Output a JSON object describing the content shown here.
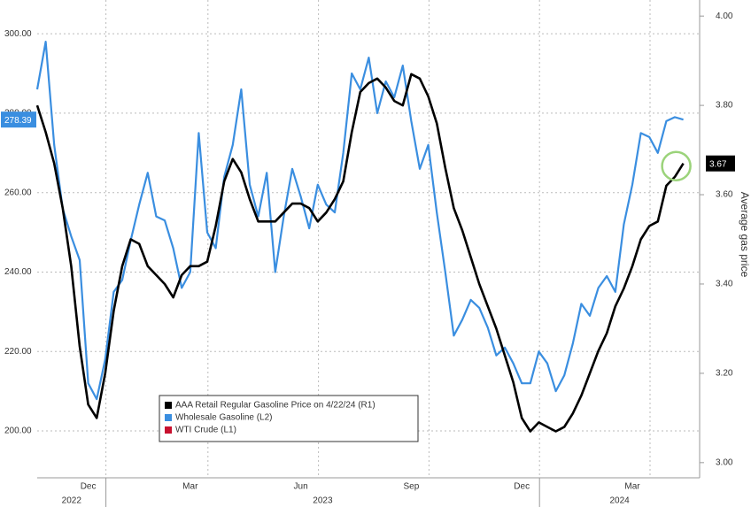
{
  "chart_data": {
    "type": "line",
    "y2_axis_label": "Average gas price",
    "categories": [
      null,
      null,
      null,
      null,
      null,
      null,
      "Dec",
      null,
      null,
      null,
      null,
      null,
      null,
      null,
      null,
      null,
      null,
      null,
      "Mar",
      null,
      null,
      null,
      null,
      null,
      null,
      null,
      null,
      null,
      null,
      null,
      null,
      "Jun",
      null,
      null,
      null,
      null,
      null,
      null,
      null,
      null,
      null,
      null,
      null,
      null,
      "Sep",
      null,
      null,
      null,
      null,
      null,
      null,
      null,
      null,
      null,
      null,
      null,
      null,
      "Dec",
      null,
      null,
      null,
      null,
      null,
      null,
      null,
      null,
      null,
      null,
      null,
      null,
      "Mar",
      null,
      null,
      null,
      null,
      null,
      null
    ],
    "year_labels": [
      "2022",
      "2023",
      "2024"
    ],
    "series": [
      {
        "name": "AAA Retail Regular Gasoline Price on 4/22/24 (R1)",
        "color": "#000000",
        "axis": "y2",
        "values": [
          3.8,
          3.74,
          3.67,
          3.57,
          3.44,
          3.26,
          3.13,
          3.1,
          3.2,
          3.34,
          3.44,
          3.5,
          3.49,
          3.44,
          3.42,
          3.4,
          3.37,
          3.42,
          3.44,
          3.44,
          3.45,
          3.53,
          3.63,
          3.68,
          3.65,
          3.59,
          3.54,
          3.54,
          3.54,
          3.56,
          3.58,
          3.58,
          3.57,
          3.54,
          3.56,
          3.59,
          3.63,
          3.74,
          3.83,
          3.85,
          3.86,
          3.84,
          3.81,
          3.8,
          3.87,
          3.86,
          3.82,
          3.76,
          3.66,
          3.57,
          3.52,
          3.46,
          3.4,
          3.35,
          3.3,
          3.24,
          3.18,
          3.1,
          3.07,
          3.09,
          3.08,
          3.07,
          3.08,
          3.11,
          3.15,
          3.2,
          3.25,
          3.29,
          3.35,
          3.39,
          3.44,
          3.5,
          3.53,
          3.54,
          3.62,
          3.64,
          3.67
        ]
      },
      {
        "name": "Wholesale Gasoline (L2)",
        "color": "#3a8ee0",
        "values": [
          286,
          298,
          272,
          256,
          249,
          243,
          212,
          208,
          218,
          235,
          238,
          248,
          257,
          265,
          254,
          253,
          246,
          236,
          240,
          275,
          250,
          246,
          264,
          272,
          286,
          262,
          254,
          265,
          240,
          254,
          266,
          259,
          251,
          262,
          257,
          255,
          270,
          290,
          286,
          294,
          280,
          288,
          284,
          292,
          278,
          266,
          272,
          255,
          240,
          224,
          228,
          233,
          231,
          226,
          219,
          221,
          217,
          212,
          212,
          220,
          217,
          210,
          214,
          222,
          232,
          229,
          236,
          239,
          235,
          252,
          262,
          275,
          274,
          270,
          278,
          279,
          278.39
        ]
      },
      {
        "name": "WTI Crude (L1)",
        "color": "#c8102e",
        "values": [
          null,
          null,
          null,
          null,
          null,
          null,
          null,
          null,
          null,
          null,
          null,
          null,
          null,
          null,
          null,
          null,
          null,
          null,
          null,
          null,
          null,
          null,
          null,
          null,
          null,
          null,
          null,
          null,
          null,
          null,
          null,
          null,
          null,
          null,
          null,
          null,
          null,
          null,
          null,
          null,
          null,
          null,
          null,
          null,
          null,
          null,
          null,
          null,
          null,
          null,
          null,
          null,
          null,
          null,
          null,
          null,
          null,
          null,
          null,
          null,
          null,
          null,
          null,
          null,
          null,
          null,
          null,
          null,
          null,
          null,
          null,
          null,
          null,
          null,
          null,
          null,
          null
        ]
      }
    ],
    "ylim": [
      188.2,
      308.5
    ],
    "yticks": [
      {
        "value": 200,
        "label": "200.00"
      },
      {
        "value": 220,
        "label": "220.00"
      },
      {
        "value": 240,
        "label": "240.00"
      },
      {
        "value": 260,
        "label": "260.00"
      },
      {
        "value": 280,
        "label": "280.00"
      },
      {
        "value": 300,
        "label": "300.00"
      }
    ],
    "y2lim": [
      2.966,
      4.036
    ],
    "y2ticks": [
      {
        "value": 3,
        "label": "3.00"
      },
      {
        "value": 3.2,
        "label": "3.20"
      },
      {
        "value": 3.4,
        "label": "3.40"
      },
      {
        "value": 3.6,
        "label": "3.60"
      },
      {
        "value": 3.8,
        "label": "3.80"
      },
      {
        "value": 4,
        "label": "4.00"
      }
    ],
    "grid": true
  }
}
